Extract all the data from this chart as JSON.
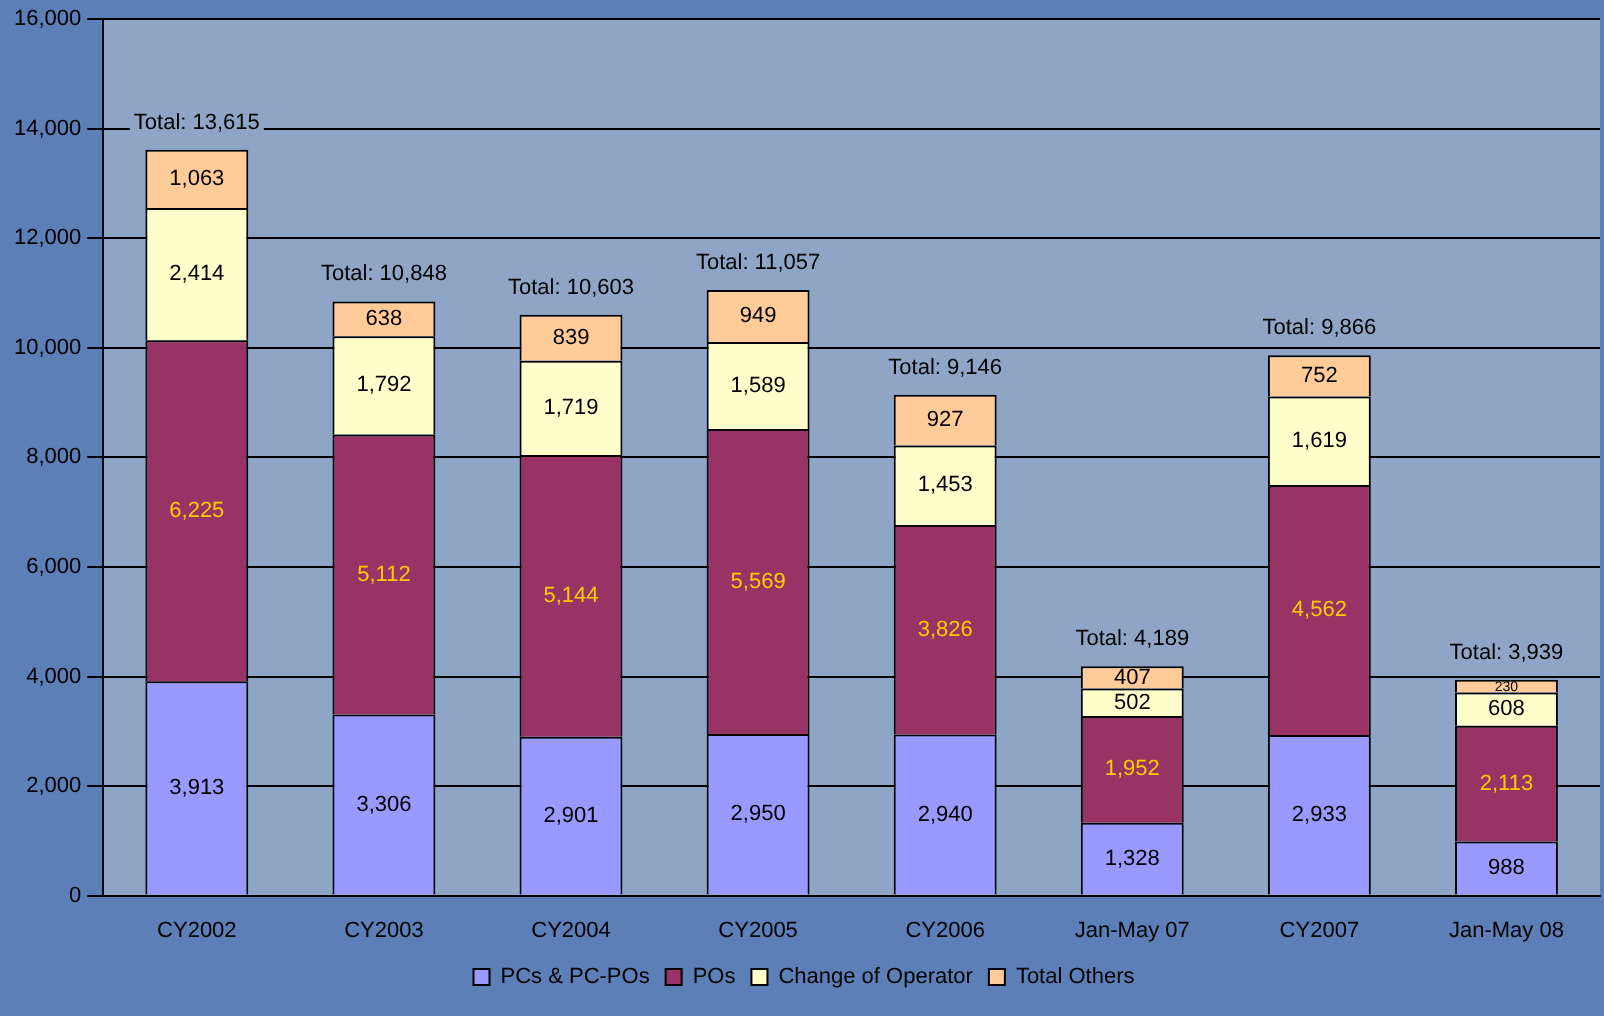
{
  "chart_data": {
    "type": "bar",
    "stacked": true,
    "categories": [
      "CY2002",
      "CY2003",
      "CY2004",
      "CY2005",
      "CY2006",
      "Jan-May 07",
      "CY2007",
      "Jan-May 08"
    ],
    "series": [
      {
        "name": "PCs & PC-POs",
        "color": "#9999ff",
        "values": [
          3913,
          3306,
          2901,
          2950,
          2940,
          1328,
          2933,
          988
        ],
        "value_labels": [
          "3,913",
          "3,306",
          "2,901",
          "2,950",
          "2,940",
          "1,328",
          "2,933",
          "988"
        ]
      },
      {
        "name": "POs",
        "color": "#993366",
        "values": [
          6225,
          5112,
          5144,
          5569,
          3826,
          1952,
          4562,
          2113
        ],
        "value_labels": [
          "6,225",
          "5,112",
          "5,144",
          "5,569",
          "3,826",
          "1,952",
          "4,562",
          "2,113"
        ]
      },
      {
        "name": "Change of Operator",
        "color": "#ffffcc",
        "values": [
          2414,
          1792,
          1719,
          1589,
          1453,
          502,
          1619,
          608
        ],
        "value_labels": [
          "2,414",
          "1,792",
          "1,719",
          "1,589",
          "1,453",
          "502",
          "1,619",
          "608"
        ]
      },
      {
        "name": "Total Others",
        "color": "#ffcc99",
        "values": [
          1063,
          638,
          839,
          949,
          927,
          407,
          752,
          230
        ],
        "value_labels": [
          "1,063",
          "638",
          "839",
          "949",
          "927",
          "407",
          "752",
          "230"
        ]
      }
    ],
    "totals": [
      "Total: 13,615",
      "Total: 10,848",
      "Total: 10,603",
      "Total: 11,057",
      "Total: 9,146",
      "Total: 4,189",
      "Total: 9,866",
      "Total: 3,939"
    ],
    "ylim": [
      0,
      16000
    ],
    "yticks": [
      0,
      {
        "value": 2000,
        "label": "2,000"
      },
      {
        "value": 4000,
        "label": "4,000"
      },
      {
        "value": 6000,
        "label": "6,000"
      },
      {
        "value": 8000,
        "label": "8,000"
      },
      {
        "value": 10000,
        "label": "10,000"
      },
      {
        "value": 12000,
        "label": "12,000"
      },
      {
        "value": 14000,
        "label": "14,000"
      },
      {
        "value": 16000,
        "label": "16,000"
      }
    ],
    "grid": "y",
    "legend": "bottom"
  }
}
